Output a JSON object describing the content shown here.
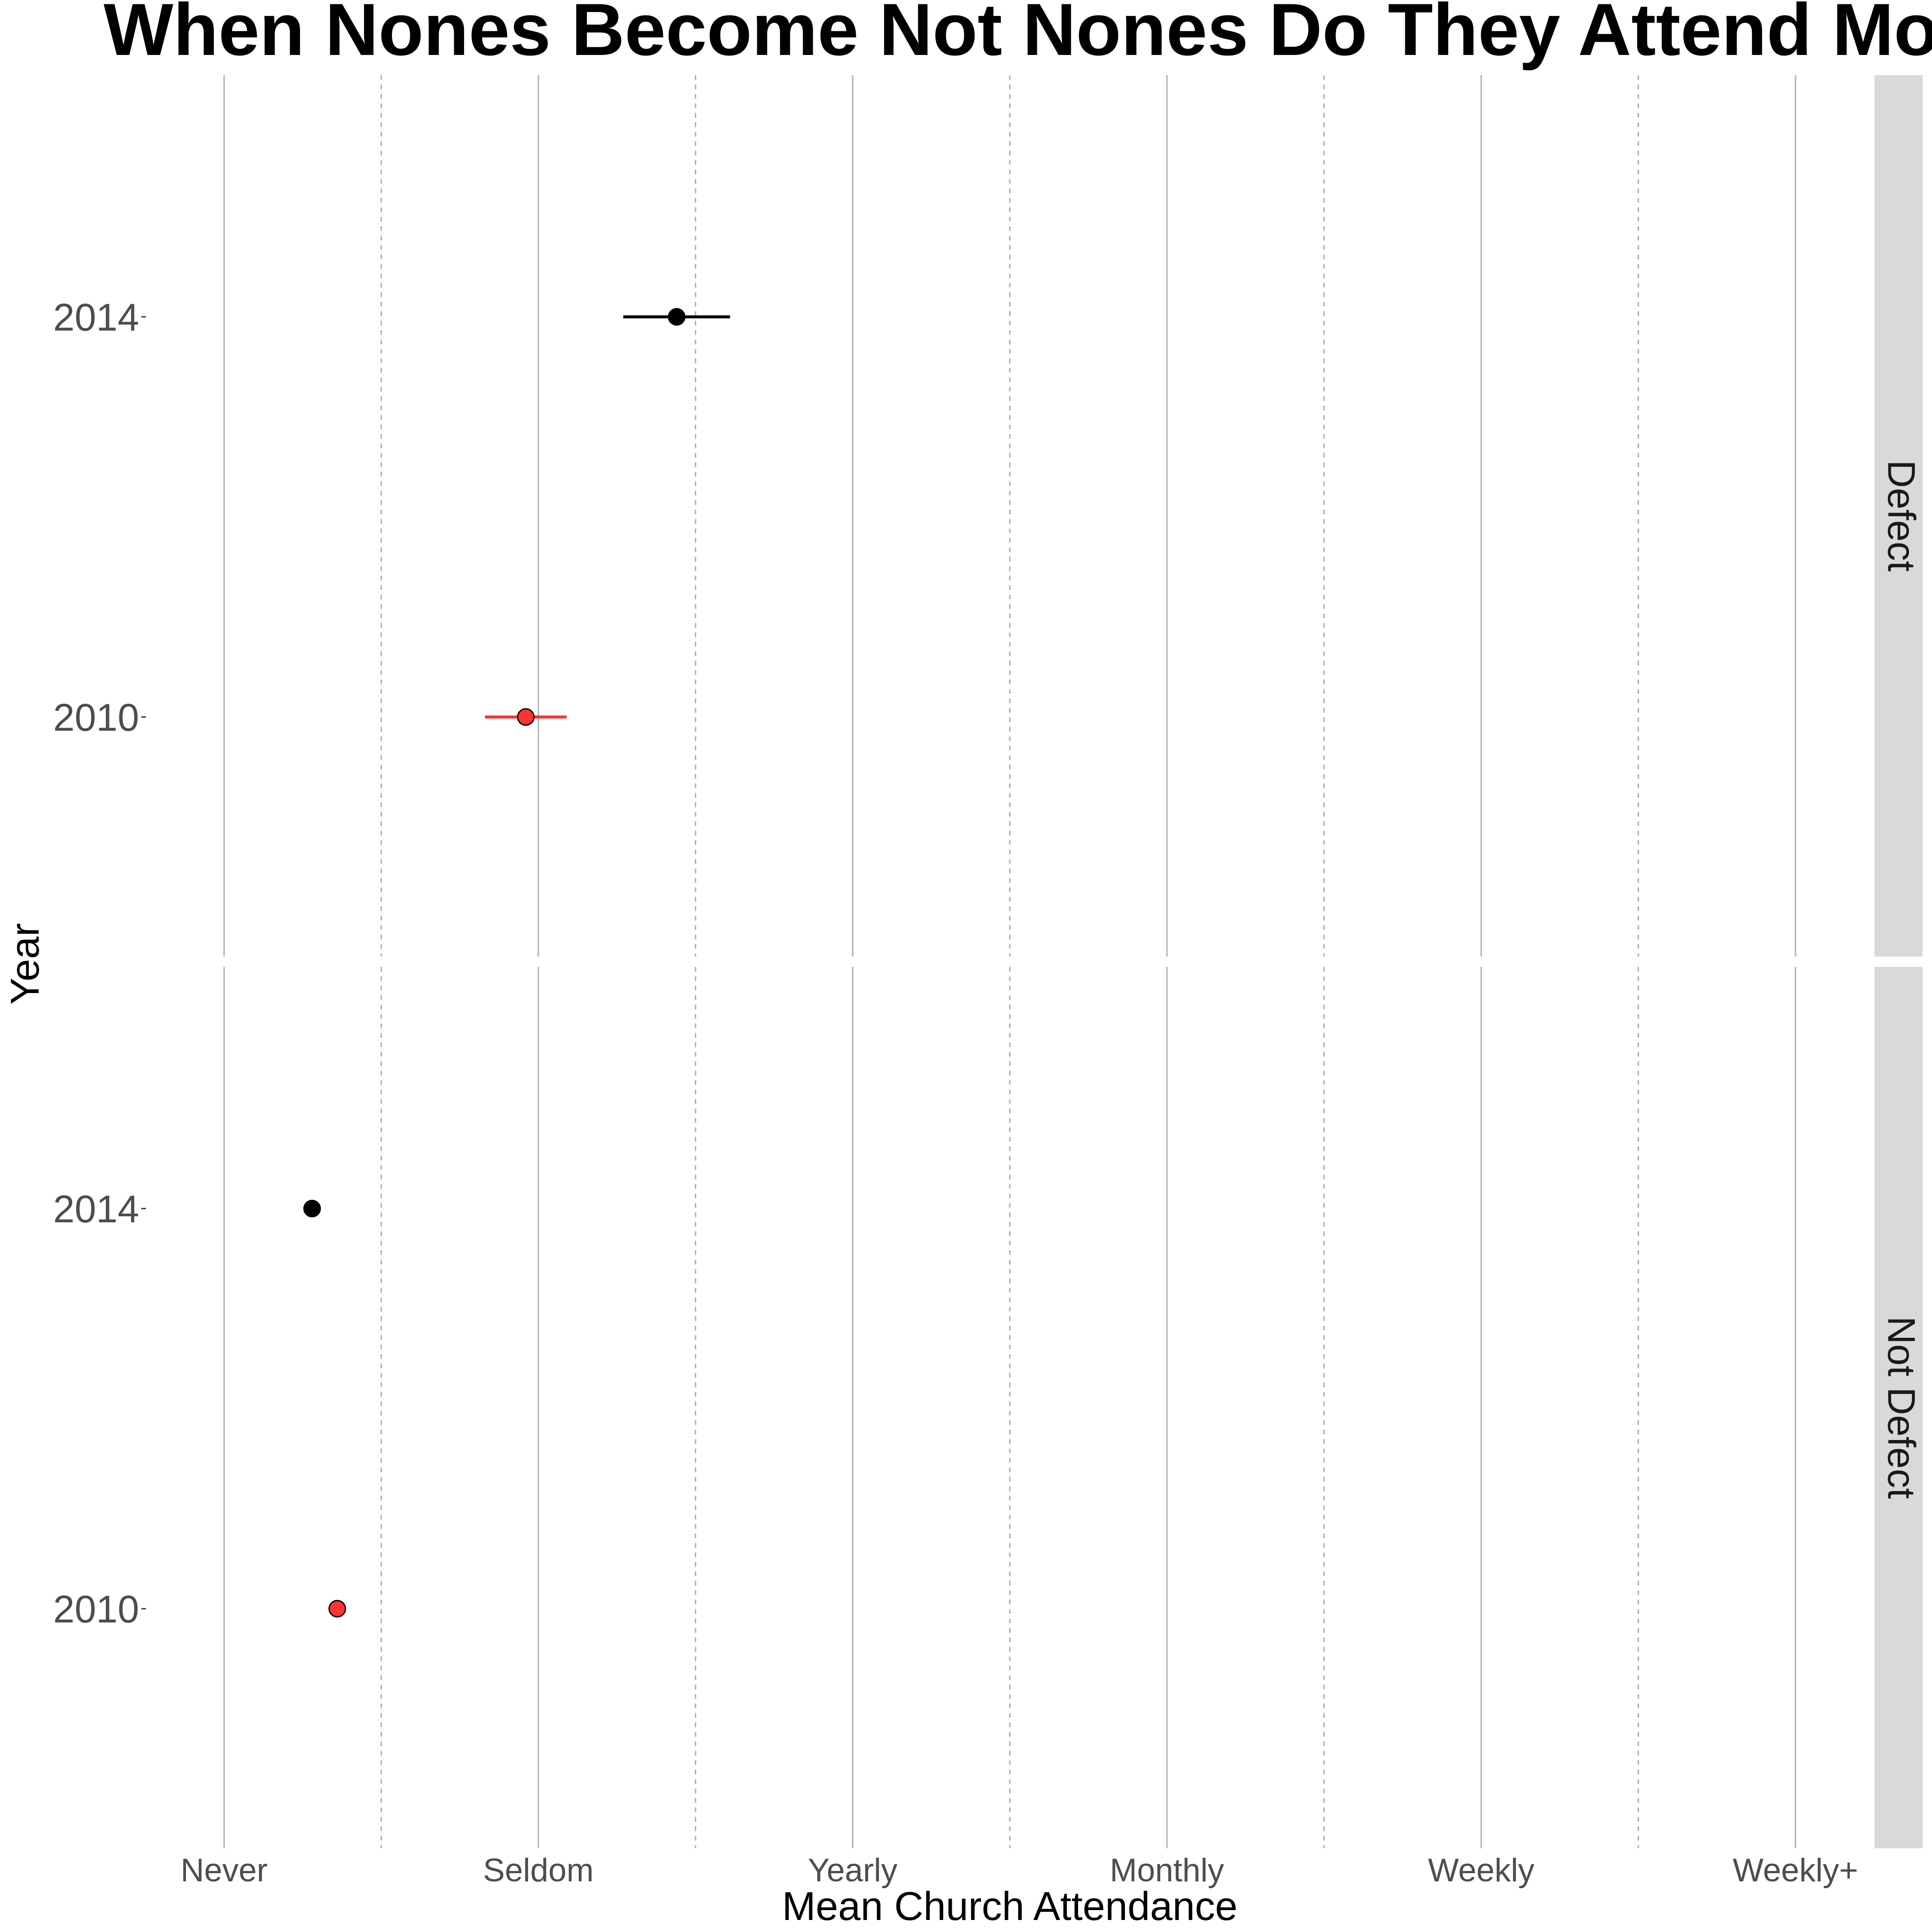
{
  "chart_data": {
    "type": "scatter",
    "title": "When Nones Become Not Nones Do They Attend More",
    "xlabel": "Mean Church Attendance",
    "ylabel": "Year",
    "x_ticks": [
      "Never",
      "Seldom",
      "Yearly",
      "Monthly",
      "Weekly",
      "Weekly+"
    ],
    "x_tick_values": [
      1,
      2,
      3,
      4,
      5,
      6
    ],
    "xlim": [
      1,
      6
    ],
    "x_minor_grid": [
      1.5,
      2.5,
      3.5,
      4.5,
      5.5
    ],
    "y_ticks": [
      "2010",
      "2014"
    ],
    "grid": true,
    "legend": "none",
    "facets": [
      {
        "label": "Defect",
        "points": [
          {
            "year": "2014",
            "x": 2.44,
            "ci": [
              2.27,
              2.61
            ],
            "color": "#000000"
          },
          {
            "year": "2010",
            "x": 1.96,
            "ci": [
              1.83,
              2.09
            ],
            "color": "#ff3333"
          }
        ]
      },
      {
        "label": "Not Defect",
        "points": [
          {
            "year": "2014",
            "x": 1.28,
            "ci": [
              1.27,
              1.29
            ],
            "color": "#000000"
          },
          {
            "year": "2010",
            "x": 1.36,
            "ci": [
              1.35,
              1.37
            ],
            "color": "#ff3333"
          }
        ]
      }
    ]
  }
}
